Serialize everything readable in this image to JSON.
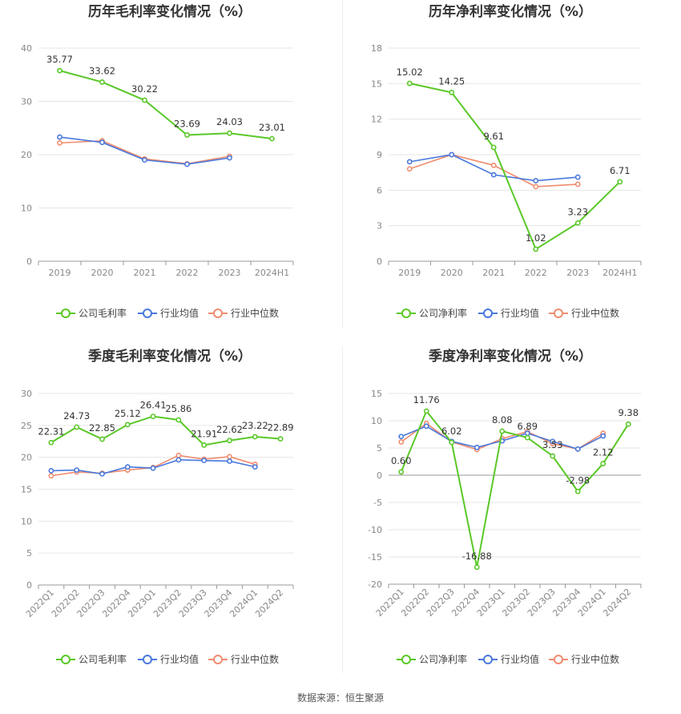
{
  "source": "数据来源：恒生聚源",
  "legend_labels": [
    "行业均值",
    "行业中位数"
  ],
  "colors": {
    "company": "#5ac828",
    "avg": "#4a78dc",
    "median": "#f08c6e",
    "grid": "#e6e6e6",
    "axis": "#999999"
  },
  "chart_data": [
    {
      "type": "line",
      "title": "历年毛利率变化情况（%）",
      "categories": [
        "2019",
        "2020",
        "2021",
        "2022",
        "2023",
        "2024H1"
      ],
      "ylim": [
        0,
        40
      ],
      "yticks": [
        0,
        10,
        20,
        30,
        40
      ],
      "series": [
        {
          "name": "公司毛利率",
          "values": [
            35.77,
            33.62,
            30.22,
            23.69,
            24.03,
            23.01
          ],
          "labels": [
            "35.77",
            "33.62",
            "30.22",
            "23.69",
            "24.03",
            "23.01"
          ]
        },
        {
          "name": "行业均值",
          "values": [
            23.3,
            22.3,
            19.0,
            18.2,
            19.4,
            null
          ]
        },
        {
          "name": "行业中位数",
          "values": [
            22.2,
            22.6,
            19.2,
            18.3,
            19.7,
            null
          ]
        }
      ]
    },
    {
      "type": "line",
      "title": "历年净利率变化情况（%）",
      "categories": [
        "2019",
        "2020",
        "2021",
        "2022",
        "2023",
        "2024H1"
      ],
      "ylim": [
        0,
        18
      ],
      "yticks": [
        0,
        3,
        6,
        9,
        12,
        15,
        18
      ],
      "series": [
        {
          "name": "公司净利率",
          "values": [
            15.02,
            14.25,
            9.61,
            1.02,
            3.23,
            6.71
          ],
          "labels": [
            "15.02",
            "14.25",
            "9.61",
            "1.02",
            "3.23",
            "6.71"
          ]
        },
        {
          "name": "行业均值",
          "values": [
            8.4,
            9.0,
            7.3,
            6.8,
            7.1,
            null
          ]
        },
        {
          "name": "行业中位数",
          "values": [
            7.8,
            9.0,
            8.1,
            6.3,
            6.5,
            null
          ]
        }
      ]
    },
    {
      "type": "line",
      "title": "季度毛利率变化情况（%）",
      "categories": [
        "2022Q1",
        "2022Q2",
        "2022Q3",
        "2022Q4",
        "2023Q1",
        "2023Q2",
        "2023Q3",
        "2023Q4",
        "2024Q1",
        "2024Q2"
      ],
      "ylim": [
        0,
        30
      ],
      "yticks": [
        0,
        5,
        10,
        15,
        20,
        25,
        30
      ],
      "series": [
        {
          "name": "公司毛利率",
          "values": [
            22.31,
            24.73,
            22.85,
            25.12,
            26.41,
            25.86,
            21.91,
            22.62,
            23.22,
            22.89
          ],
          "labels": [
            "22.31",
            "24.73",
            "22.85",
            "25.12",
            "26.41",
            "25.86",
            "21.91",
            "22.62",
            "23.22",
            "22.89"
          ]
        },
        {
          "name": "行业均值",
          "values": [
            17.9,
            18.0,
            17.4,
            18.5,
            18.3,
            19.6,
            19.5,
            19.4,
            18.5,
            null
          ]
        },
        {
          "name": "行业中位数",
          "values": [
            17.1,
            17.7,
            17.5,
            18.0,
            18.4,
            20.3,
            19.7,
            20.1,
            18.9,
            null
          ]
        }
      ]
    },
    {
      "type": "line",
      "title": "季度净利率变化情况（%）",
      "categories": [
        "2022Q1",
        "2022Q2",
        "2022Q3",
        "2022Q4",
        "2023Q1",
        "2023Q2",
        "2023Q3",
        "2023Q4",
        "2024Q1",
        "2024Q2"
      ],
      "ylim": [
        -20,
        15
      ],
      "yticks": [
        -20,
        -15,
        -10,
        -5,
        0,
        5,
        10,
        15
      ],
      "series": [
        {
          "name": "公司净利率",
          "values": [
            0.6,
            11.76,
            6.02,
            -16.88,
            8.08,
            6.89,
            3.53,
            -2.98,
            2.12,
            9.38
          ],
          "labels": [
            "0.60",
            "11.76",
            "6.02",
            "-16.88",
            "8.08",
            "6.89",
            "3.53",
            "-2.98",
            "2.12",
            "9.38"
          ]
        },
        {
          "name": "行业均值",
          "values": [
            7.1,
            9.0,
            6.2,
            5.1,
            6.3,
            7.7,
            6.2,
            4.8,
            7.2,
            null
          ]
        },
        {
          "name": "行业中位数",
          "values": [
            6.1,
            9.5,
            6.1,
            4.7,
            6.7,
            8.0,
            5.8,
            4.8,
            7.7,
            null
          ]
        }
      ]
    }
  ]
}
